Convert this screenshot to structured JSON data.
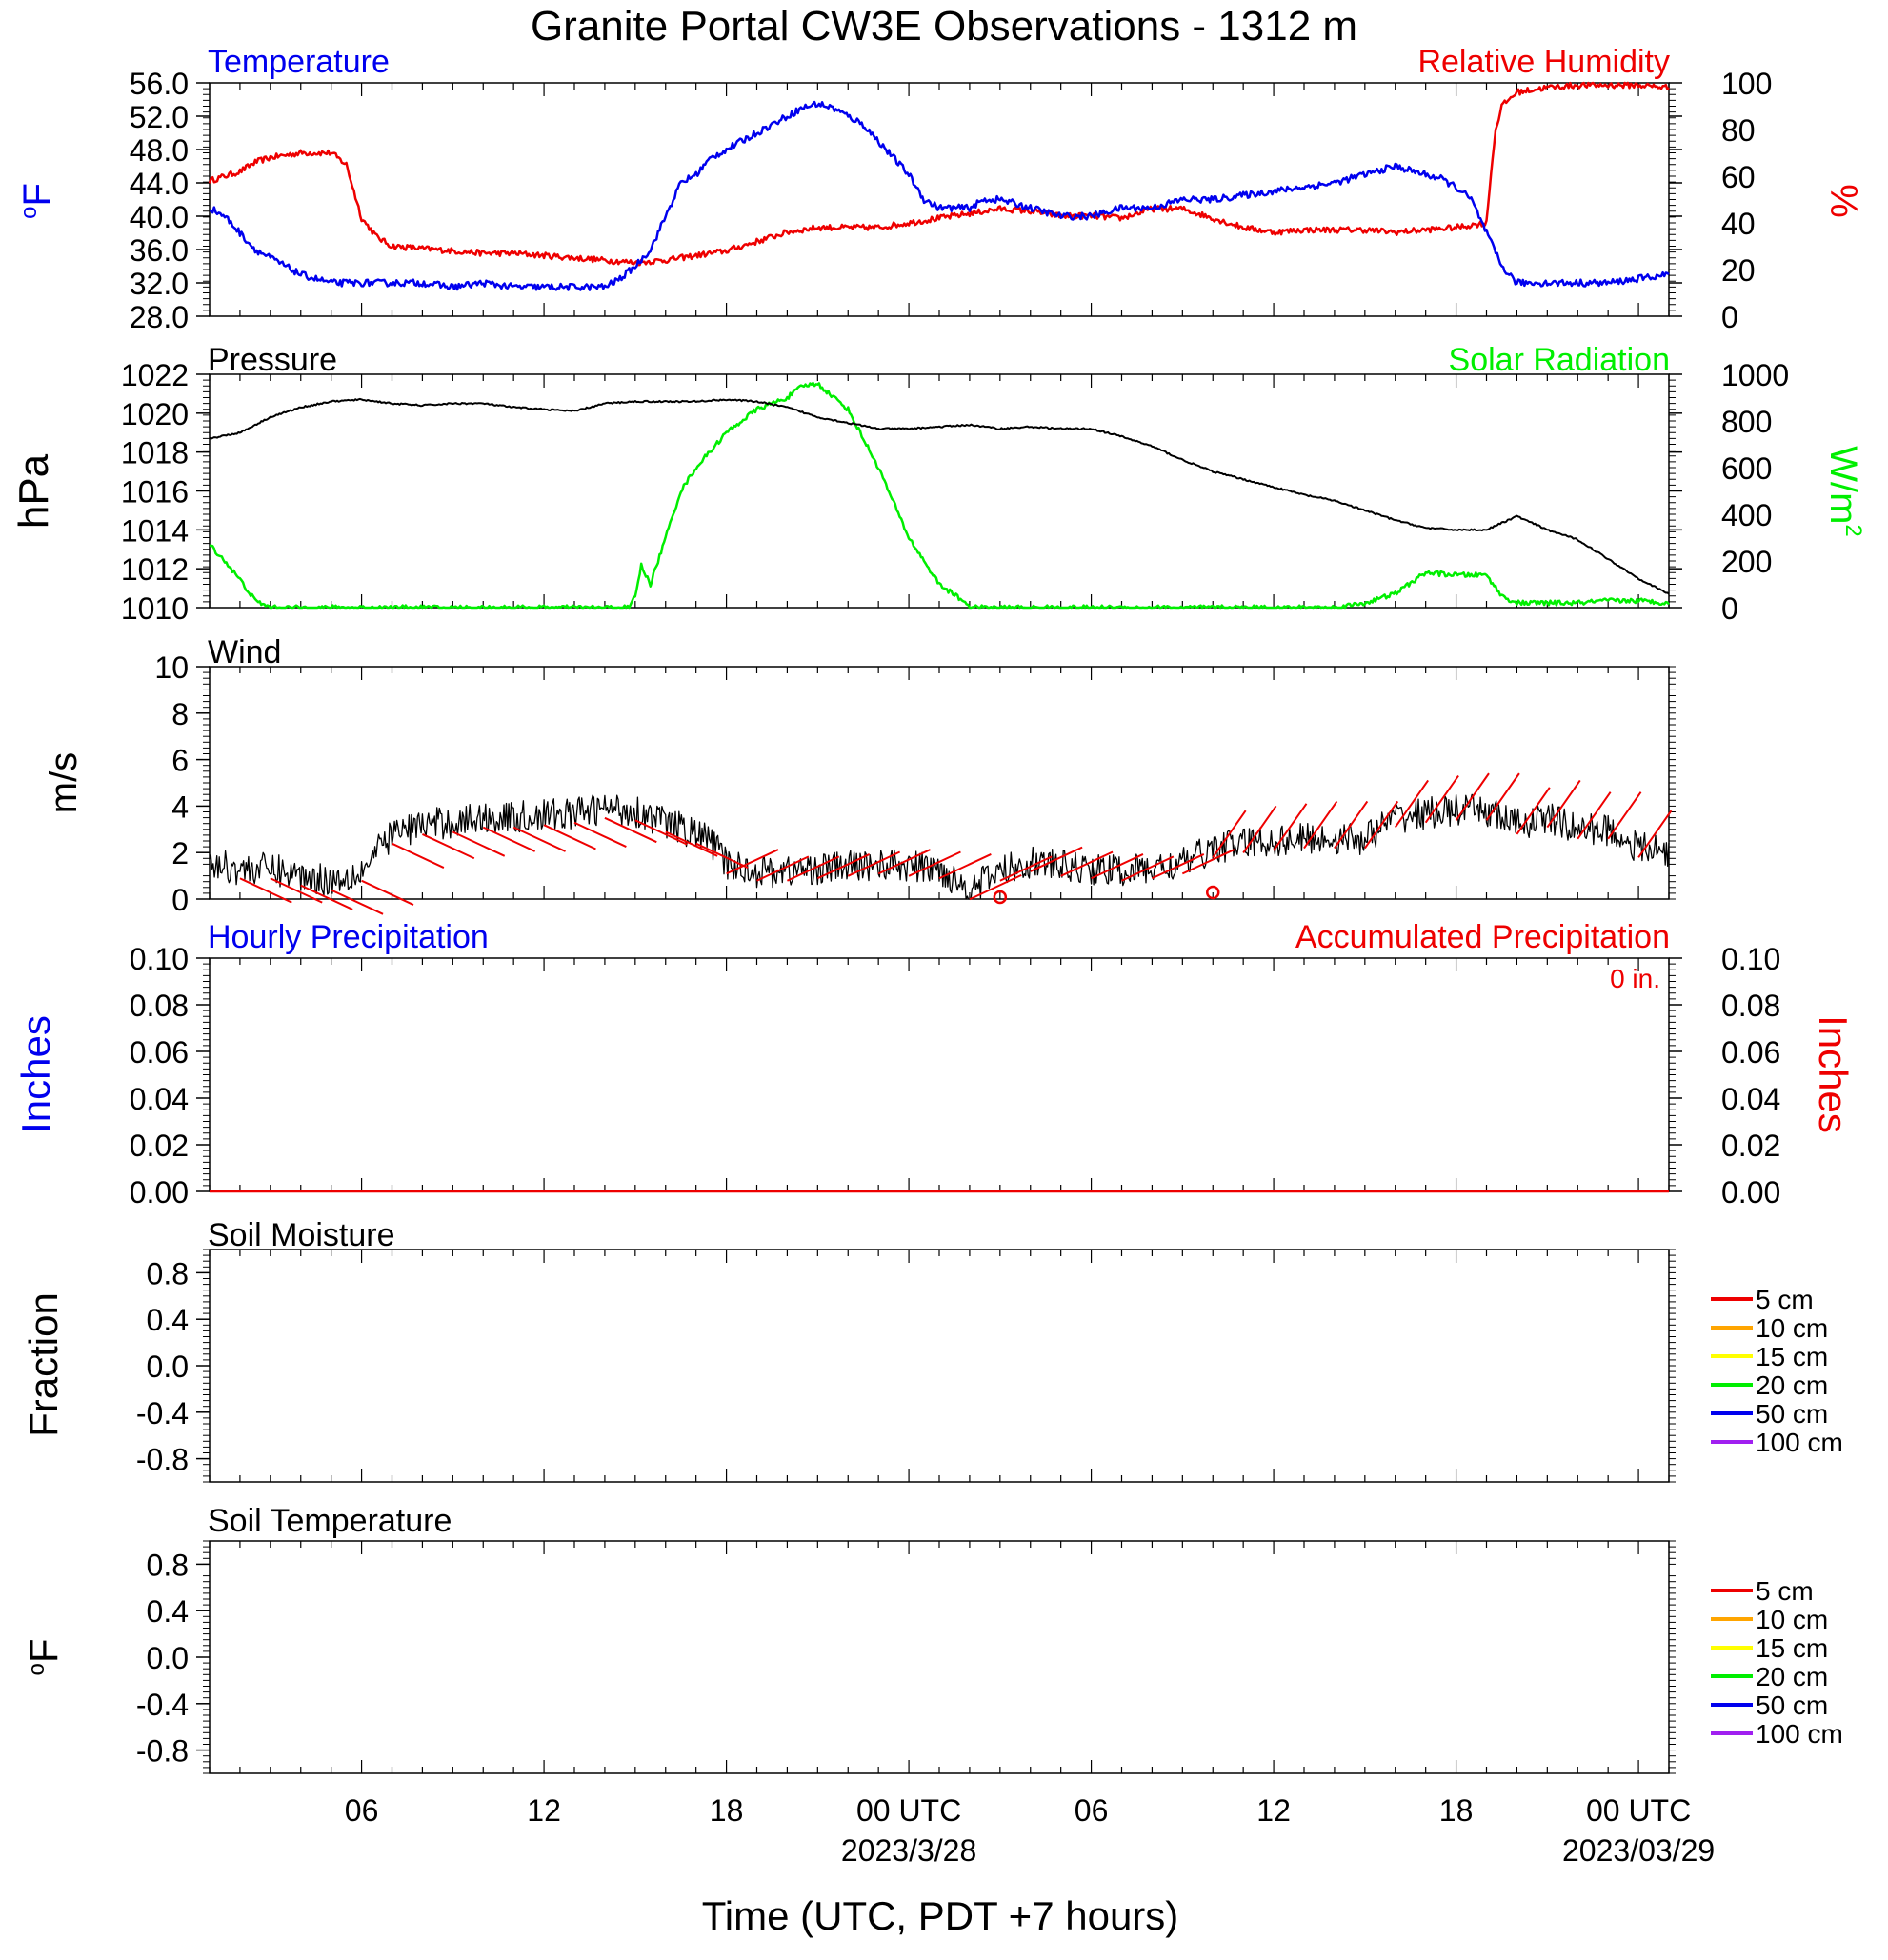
{
  "title": "Granite Portal CW3E Observations - 1312 m",
  "colors": {
    "temperature": "#0000ee",
    "humidity": "#ee0000",
    "pressure": "#000000",
    "solar": "#00ee00",
    "wind": "#000000",
    "barbs": "#ee0000",
    "hourly_precip": "#0000ee",
    "accum_precip": "#ee0000"
  },
  "x_axis": {
    "label": "Time (UTC, PDT +7 hours)",
    "range_hours": [
      0,
      48
    ],
    "ticks": [
      {
        "hour": 5,
        "label": "06",
        "sublabel": ""
      },
      {
        "hour": 11,
        "label": "12",
        "sublabel": ""
      },
      {
        "hour": 17,
        "label": "18",
        "sublabel": ""
      },
      {
        "hour": 23,
        "label": "00 UTC",
        "sublabel": "2023/3/28"
      },
      {
        "hour": 29,
        "label": "06",
        "sublabel": ""
      },
      {
        "hour": 35,
        "label": "12",
        "sublabel": ""
      },
      {
        "hour": 41,
        "label": "18",
        "sublabel": ""
      },
      {
        "hour": 47,
        "label": "00 UTC",
        "sublabel": "2023/03/29"
      }
    ]
  },
  "panels": {
    "temp_rh": {
      "left_label": "Temperature",
      "right_label": "Relative Humidity",
      "left_unit": "oF",
      "right_unit": "%",
      "left_ticks": [
        "56.0",
        "52.0",
        "48.0",
        "44.0",
        "40.0",
        "36.0",
        "32.0",
        "28.0"
      ],
      "right_ticks": [
        "100",
        "80",
        "60",
        "40",
        "20",
        "0"
      ]
    },
    "pressure_solar": {
      "left_label": "Pressure",
      "right_label": "Solar Radiation",
      "left_unit": "hPa",
      "right_unit": "W/m",
      "right_unit_sup": "2",
      "left_ticks": [
        "1022",
        "1020",
        "1018",
        "1016",
        "1014",
        "1012",
        "1010"
      ],
      "right_ticks": [
        "1000",
        "800",
        "600",
        "400",
        "200",
        "0"
      ]
    },
    "wind": {
      "left_label": "Wind",
      "left_unit": "m/s",
      "left_ticks": [
        "10",
        "8",
        "6",
        "4",
        "2",
        "0"
      ]
    },
    "precip": {
      "left_label": "Hourly Precipitation",
      "right_label": "Accumulated Precipitation",
      "total": "0 in.",
      "left_unit": "Inches",
      "right_unit": "Inches",
      "left_ticks": [
        "0.10",
        "0.08",
        "0.06",
        "0.04",
        "0.02",
        "0.00"
      ],
      "right_ticks": [
        "0.10",
        "0.08",
        "0.06",
        "0.04",
        "0.02",
        "0.00"
      ]
    },
    "soil_moisture": {
      "left_label": "Soil Moisture",
      "left_unit": "Fraction",
      "left_ticks": [
        "0.8",
        "0.4",
        "0.0",
        "-0.4",
        "-0.8"
      ],
      "legend": [
        {
          "label": "5 cm",
          "color": "#ee0000"
        },
        {
          "label": "10 cm",
          "color": "#ffa500"
        },
        {
          "label": "15 cm",
          "color": "#ffff00"
        },
        {
          "label": "20 cm",
          "color": "#00ee00"
        },
        {
          "label": "50 cm",
          "color": "#0000ee"
        },
        {
          "label": "100 cm",
          "color": "#a020f0"
        }
      ]
    },
    "soil_temperature": {
      "left_label": "Soil Temperature",
      "left_unit": "oF",
      "left_ticks": [
        "0.8",
        "0.4",
        "0.0",
        "-0.4",
        "-0.8"
      ],
      "legend": [
        {
          "label": "5 cm",
          "color": "#ee0000"
        },
        {
          "label": "10 cm",
          "color": "#ffa500"
        },
        {
          "label": "15 cm",
          "color": "#ffff00"
        },
        {
          "label": "20 cm",
          "color": "#00ee00"
        },
        {
          "label": "50 cm",
          "color": "#0000ee"
        },
        {
          "label": "100 cm",
          "color": "#a020f0"
        }
      ]
    }
  },
  "chart_data": [
    {
      "type": "line",
      "title": "Temperature / Relative Humidity",
      "x_unit": "hours since start of plot",
      "series": [
        {
          "name": "Temperature",
          "axis": "left",
          "ylim": [
            28,
            56
          ],
          "x": [
            0,
            0.5,
            1,
            1.5,
            2,
            2.5,
            3,
            3.5,
            4,
            5,
            6,
            7,
            8,
            9,
            10,
            11,
            12,
            13,
            13.5,
            14,
            14.5,
            15,
            15.5,
            16,
            16.5,
            17,
            17.5,
            18,
            18.5,
            19,
            19.5,
            20,
            20.5,
            21,
            21.5,
            22,
            22.5,
            23,
            23.5,
            24,
            24.5,
            25,
            25.5,
            26,
            27,
            28,
            29,
            30,
            31,
            32,
            33,
            34,
            35,
            36,
            37,
            38,
            39,
            40,
            40.5,
            41,
            41.5,
            42,
            42.5,
            43,
            43.5,
            44,
            45,
            46,
            47,
            48
          ],
          "y": [
            41,
            40,
            38,
            36,
            35,
            34,
            33,
            32.5,
            32,
            32,
            32,
            32,
            31.5,
            32,
            31.5,
            31.5,
            31.5,
            31.5,
            32.5,
            34,
            36,
            40,
            44,
            45,
            47,
            48,
            49,
            50,
            51,
            52,
            53,
            53.5,
            53,
            52,
            51,
            49,
            47,
            45,
            42,
            41,
            41,
            41,
            42,
            42,
            41,
            40,
            40,
            41,
            41,
            42,
            42,
            42.5,
            43,
            43.5,
            44,
            45,
            46,
            45,
            44.5,
            43.5,
            42,
            38,
            34,
            32,
            32,
            32,
            32,
            32,
            32.5,
            33
          ]
        },
        {
          "name": "Relative Humidity",
          "axis": "right",
          "ylim": [
            0,
            100
          ],
          "x": [
            0,
            1,
            1.5,
            2,
            3,
            4,
            4.5,
            5,
            5.5,
            6,
            7,
            8,
            9,
            10,
            11,
            12,
            13,
            14,
            15,
            16,
            17,
            18,
            19,
            20,
            21,
            22,
            23,
            24,
            25,
            26,
            27,
            28,
            29,
            30,
            31,
            32,
            33,
            34,
            35,
            36,
            37,
            38,
            39,
            40,
            41,
            42,
            42.1,
            42.3,
            42.5,
            43,
            44,
            45,
            46,
            47,
            48
          ],
          "y": [
            58,
            62,
            66,
            68,
            70,
            70,
            65,
            42,
            34,
            30,
            29,
            28,
            27,
            27,
            26,
            25,
            24,
            23,
            24,
            26,
            28,
            32,
            36,
            38,
            38,
            38,
            40,
            42,
            44,
            46,
            45,
            43,
            43,
            42,
            46,
            46,
            42,
            38,
            36,
            37,
            37,
            37,
            36,
            37,
            38,
            40,
            55,
            80,
            90,
            96,
            98,
            99,
            99,
            99,
            98
          ]
        }
      ]
    },
    {
      "type": "line",
      "title": "Pressure / Solar Radiation",
      "x_unit": "hours since start of plot",
      "series": [
        {
          "name": "Pressure",
          "axis": "left",
          "ylim": [
            1010,
            1022
          ],
          "x": [
            0,
            1,
            2,
            3,
            4,
            5,
            6,
            7,
            8,
            9,
            10,
            11,
            12,
            13,
            14,
            15,
            16,
            17,
            18,
            19,
            20,
            21,
            22,
            23,
            24,
            25,
            26,
            27,
            28,
            29,
            30,
            31,
            32,
            33,
            34,
            35,
            36,
            37,
            38,
            39,
            40,
            41,
            42,
            43,
            44,
            45,
            46,
            47,
            48
          ],
          "y": [
            1018.7,
            1019,
            1019.8,
            1020.3,
            1020.6,
            1020.7,
            1020.5,
            1020.4,
            1020.5,
            1020.5,
            1020.3,
            1020.2,
            1020.1,
            1020.5,
            1020.6,
            1020.6,
            1020.6,
            1020.7,
            1020.6,
            1020.3,
            1019.8,
            1019.5,
            1019.2,
            1019.2,
            1019.3,
            1019.4,
            1019.2,
            1019.3,
            1019.2,
            1019.2,
            1018.8,
            1018.3,
            1017.6,
            1017,
            1016.6,
            1016.2,
            1015.8,
            1015.5,
            1015,
            1014.5,
            1014.1,
            1014,
            1014,
            1014.7,
            1014,
            1013.5,
            1012.5,
            1011.5,
            1010.7
          ]
        },
        {
          "name": "Solar Radiation",
          "axis": "right",
          "ylim": [
            0,
            1000
          ],
          "x": [
            0,
            0.5,
            1,
            1.5,
            2,
            5,
            10,
            13,
            13.8,
            14,
            14.2,
            14.5,
            15,
            15.5,
            16,
            17,
            18,
            19,
            19.5,
            20,
            21,
            22,
            23,
            24,
            25,
            25,
            30,
            35,
            37,
            38,
            39,
            40,
            41,
            42,
            42.5,
            43,
            44,
            45,
            46,
            47,
            48
          ],
          "y": [
            270,
            200,
            120,
            30,
            0,
            0,
            0,
            0,
            0,
            50,
            180,
            100,
            300,
            500,
            600,
            750,
            850,
            900,
            950,
            960,
            850,
            600,
            300,
            100,
            10,
            0,
            0,
            0,
            0,
            20,
            60,
            150,
            140,
            140,
            50,
            20,
            20,
            20,
            30,
            30,
            20
          ]
        }
      ]
    },
    {
      "type": "line",
      "title": "Wind",
      "x_unit": "hours since start of plot",
      "series": [
        {
          "name": "Wind",
          "ylim": [
            0,
            10
          ],
          "x": [
            0,
            1,
            2,
            3,
            4,
            5,
            6,
            7,
            8,
            9,
            10,
            11,
            12,
            13,
            14,
            15,
            16,
            16.5,
            17,
            18,
            19,
            20,
            21,
            22,
            23,
            24,
            25,
            26,
            27,
            28,
            29,
            30,
            31,
            32,
            33,
            34,
            35,
            36,
            37,
            38,
            39,
            40,
            41,
            42,
            43,
            44,
            45,
            46,
            47,
            48
          ],
          "y": [
            1.5,
            1.3,
            1.3,
            1.0,
            0.8,
            1.2,
            2.8,
            3.2,
            3.3,
            3.5,
            3.5,
            3.6,
            3.7,
            3.9,
            3.8,
            3.3,
            2.8,
            2.5,
            1.5,
            1.2,
            1.2,
            1.3,
            1.4,
            1.5,
            1.4,
            1.3,
            0.4,
            1.2,
            1.6,
            1.4,
            1.3,
            1.2,
            1.3,
            1.5,
            2.2,
            2.4,
            2.5,
            2.6,
            2.6,
            2.6,
            3.5,
            3.7,
            3.8,
            3.8,
            3.2,
            3.5,
            3.0,
            3.0,
            2.2,
            2.0
          ]
        }
      ]
    },
    {
      "type": "line",
      "title": "Precipitation",
      "x_unit": "hours since start of plot",
      "series": [
        {
          "name": "Hourly Precipitation",
          "ylim": [
            0,
            0.1
          ],
          "x": [
            0,
            48
          ],
          "y": [
            0,
            0
          ]
        },
        {
          "name": "Accumulated Precipitation",
          "ylim": [
            0,
            0.1
          ],
          "x": [
            0,
            48
          ],
          "y": [
            0,
            0
          ]
        }
      ]
    },
    {
      "type": "line",
      "title": "Soil Moisture",
      "ylim": [
        -1,
        1
      ],
      "series": []
    },
    {
      "type": "line",
      "title": "Soil Temperature",
      "ylim": [
        -1,
        1
      ],
      "series": []
    }
  ]
}
